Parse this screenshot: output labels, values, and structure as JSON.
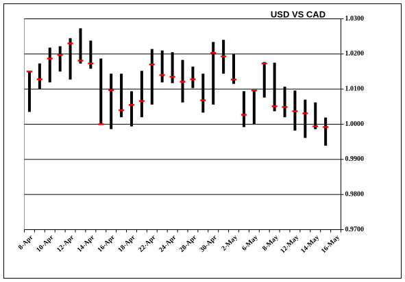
{
  "chart_data": {
    "type": "hlc",
    "title": "USD VS CAD",
    "categories": [
      "8-Apr",
      null,
      "10-Apr",
      null,
      "12-Apr",
      null,
      "14-Apr",
      null,
      "16-Apr",
      null,
      "18-Apr",
      null,
      "22-Apr",
      null,
      "24-Apr",
      null,
      "28-Apr",
      null,
      "30-Apr",
      null,
      "2-May",
      null,
      "6-May",
      null,
      "8-May",
      null,
      "12-May",
      null,
      "14-May",
      null,
      "16-May"
    ],
    "high": [
      1.0152,
      1.0173,
      1.0218,
      1.0222,
      1.0245,
      1.0273,
      1.0238,
      1.0187,
      1.0144,
      1.0144,
      1.0094,
      1.0152,
      1.0214,
      1.021,
      1.0205,
      1.0183,
      1.0164,
      1.0144,
      1.0234,
      1.024,
      1.0199,
      1.0094,
      1.0096,
      1.0177,
      1.0175,
      1.0107,
      1.0096,
      1.007,
      1.0062,
      1.0019,
      null
    ],
    "low": [
      1.0035,
      1.01,
      1.0119,
      1.015,
      1.0127,
      1.0173,
      1.0158,
      1.0,
      0.9986,
      1.002,
      0.9994,
      1.002,
      1.0056,
      1.0119,
      1.0117,
      1.0062,
      1.0103,
      1.0033,
      1.0056,
      1.0144,
      1.0115,
      0.9992,
      1.0,
      1.0076,
      1.0037,
      1.002,
      0.9982,
      0.9961,
      0.9986,
      0.9939,
      null
    ],
    "close": [
      1.015,
      1.0128,
      1.0187,
      1.0197,
      1.023,
      1.0181,
      1.0173,
      1.0,
      1.0097,
      1.004,
      1.0055,
      1.0066,
      1.017,
      1.014,
      1.0135,
      1.0121,
      1.0128,
      1.0068,
      1.0203,
      1.0193,
      1.0127,
      1.0027,
      1.0096,
      1.0173,
      1.0051,
      1.0049,
      1.0037,
      1.0031,
      0.9994,
      0.9992,
      null
    ],
    "color": "#000000",
    "close_color": "#ff0000",
    "ylim": [
      0.97,
      1.03
    ],
    "yticks": [
      {
        "value": 0.97,
        "label": "0.9700"
      },
      {
        "value": 0.98,
        "label": "0.9800"
      },
      {
        "value": 0.99,
        "label": "0.9900"
      },
      {
        "value": 1.0,
        "label": "1.0000"
      },
      {
        "value": 1.01,
        "label": "1.0100"
      },
      {
        "value": 1.02,
        "label": "1.0200"
      },
      {
        "value": 1.03,
        "label": "1.0300"
      }
    ],
    "grid": true
  }
}
